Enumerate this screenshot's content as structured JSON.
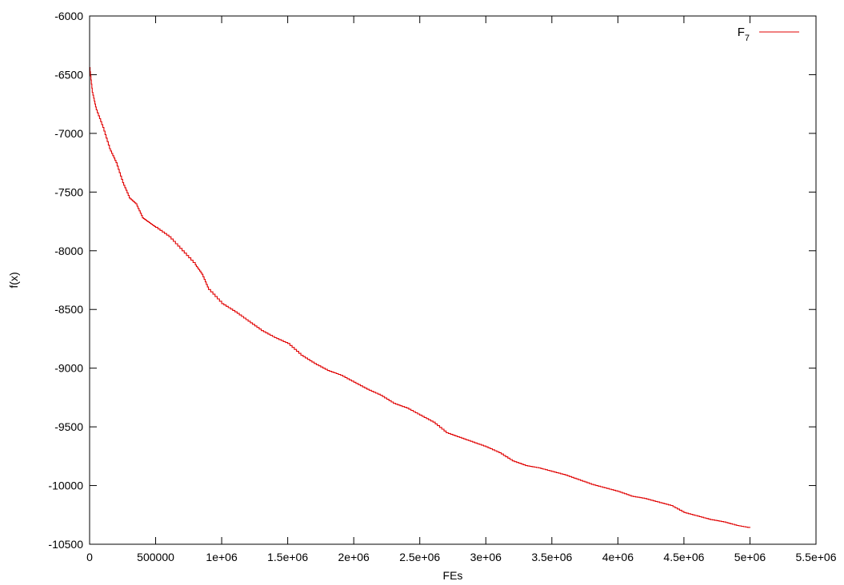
{
  "chart_data": {
    "type": "line",
    "title": "",
    "xlabel": "FEs",
    "ylabel": "f(x)",
    "xlim": [
      0,
      5500000
    ],
    "ylim": [
      -10500,
      -6000
    ],
    "xticks": [
      0,
      500000,
      1000000,
      1500000,
      2000000,
      2500000,
      3000000,
      3500000,
      4000000,
      4500000,
      5000000,
      5500000
    ],
    "xtick_labels": [
      "0",
      "500000",
      "1e+06",
      "1.5e+06",
      "2e+06",
      "2.5e+06",
      "3e+06",
      "3.5e+06",
      "4e+06",
      "4.5e+06",
      "5e+06",
      "5.5e+06"
    ],
    "yticks": [
      -6000,
      -6500,
      -7000,
      -7500,
      -8000,
      -8500,
      -9000,
      -9500,
      -10000,
      -10500
    ],
    "ytick_labels": [
      "-6000",
      "-6500",
      "-7000",
      "-7500",
      "-8000",
      "-8500",
      "-9000",
      "-9500",
      "-10000",
      "-10500"
    ],
    "grid": false,
    "legend_position": "top-right",
    "series": [
      {
        "name": "F",
        "name_subscript": "7",
        "color": "#e00000",
        "x": [
          0,
          20000,
          50000,
          100000,
          150000,
          200000,
          250000,
          300000,
          350000,
          400000,
          450000,
          500000,
          600000,
          700000,
          800000,
          850000,
          900000,
          1000000,
          1100000,
          1200000,
          1300000,
          1400000,
          1500000,
          1600000,
          1700000,
          1800000,
          1900000,
          2000000,
          2100000,
          2200000,
          2300000,
          2400000,
          2500000,
          2600000,
          2700000,
          2800000,
          2900000,
          3000000,
          3100000,
          3200000,
          3300000,
          3400000,
          3500000,
          3600000,
          3700000,
          3800000,
          3900000,
          4000000,
          4100000,
          4200000,
          4300000,
          4400000,
          4500000,
          4600000,
          4700000,
          4800000,
          4900000,
          5000000
        ],
        "y": [
          -6440,
          -6650,
          -6800,
          -6950,
          -7130,
          -7250,
          -7420,
          -7550,
          -7600,
          -7720,
          -7760,
          -7800,
          -7880,
          -8000,
          -8120,
          -8200,
          -8330,
          -8450,
          -8520,
          -8600,
          -8680,
          -8740,
          -8790,
          -8890,
          -8960,
          -9020,
          -9060,
          -9120,
          -9180,
          -9230,
          -9300,
          -9340,
          -9400,
          -9460,
          -9550,
          -9590,
          -9630,
          -9670,
          -9720,
          -9790,
          -9830,
          -9850,
          -9880,
          -9910,
          -9950,
          -9990,
          -10020,
          -10050,
          -10090,
          -10110,
          -10140,
          -10170,
          -10230,
          -10260,
          -10290,
          -10310,
          -10340,
          -10360
        ]
      }
    ]
  }
}
